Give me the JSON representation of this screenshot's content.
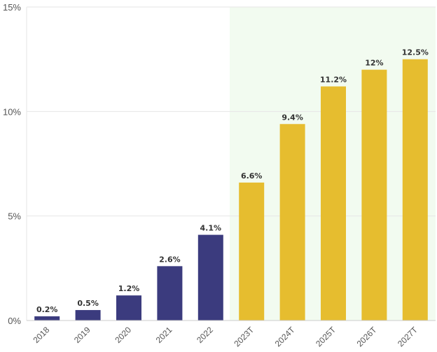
{
  "chart_data": {
    "type": "bar",
    "categories": [
      "2018",
      "2019",
      "2020",
      "2021",
      "2022",
      "2023T",
      "2024T",
      "2025T",
      "2026T",
      "2027T"
    ],
    "values": [
      0.2,
      0.5,
      1.2,
      2.6,
      4.1,
      6.6,
      9.4,
      11.2,
      12,
      12.5
    ],
    "data_labels": [
      "0.2%",
      "0.5%",
      "1.2%",
      "2.6%",
      "4.1%",
      "6.6%",
      "9.4%",
      "11.2%",
      "12%",
      "12.5%"
    ],
    "yticks": [
      0,
      5,
      10,
      15
    ],
    "ytick_labels": [
      "0%",
      "5%",
      "10%",
      "15%"
    ],
    "ylim": [
      0,
      15
    ],
    "title": "",
    "xlabel": "",
    "ylabel": "",
    "grid": true,
    "forecast_start_index": 5,
    "colors": {
      "actual": "#3b3b7e",
      "forecast": "#e6bd2f",
      "forecast_band": "#f2fbf0",
      "grid": "#e6e6e6",
      "axis": "#cccccc"
    }
  }
}
